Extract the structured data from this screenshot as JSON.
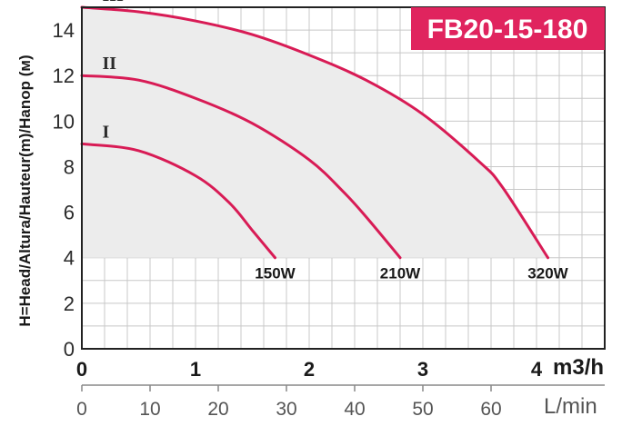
{
  "chart_data": {
    "type": "line",
    "title": "FB20-15-180",
    "ylabel": "H=Head/Altura/Hauteur(m)/Hanop (м)",
    "xlabel_top_unit": "m3/h",
    "xlabel_bottom_unit": "L/min",
    "ylim": [
      0,
      15
    ],
    "xlim": [
      0,
      4.6
    ],
    "y_ticks": [
      "0",
      "2",
      "4",
      "6",
      "8",
      "10",
      "12",
      "14"
    ],
    "x_ticks_top": [
      "0",
      "1",
      "2",
      "3",
      "4"
    ],
    "x_ticks_bottom": [
      "0",
      "10",
      "20",
      "30",
      "40",
      "50",
      "60"
    ],
    "grid": true,
    "series": [
      {
        "name": "I",
        "power": "150W",
        "x": [
          0,
          0.5,
          1.0,
          1.3,
          1.5,
          1.7
        ],
        "y": [
          9.0,
          8.7,
          7.6,
          6.4,
          5.2,
          4.0
        ]
      },
      {
        "name": "II",
        "power": "210W",
        "x": [
          0,
          0.5,
          1.0,
          1.5,
          2.0,
          2.3,
          2.5,
          2.8
        ],
        "y": [
          12.0,
          11.8,
          11.0,
          9.9,
          8.3,
          6.9,
          5.8,
          4.0
        ]
      },
      {
        "name": "III",
        "power": "320W",
        "x": [
          0,
          0.5,
          1.0,
          1.5,
          2.0,
          2.5,
          3.0,
          3.5,
          3.7,
          4.1
        ],
        "y": [
          15.0,
          14.8,
          14.4,
          13.8,
          12.9,
          11.8,
          10.3,
          8.2,
          7.1,
          4.0
        ]
      }
    ],
    "colors": {
      "curve": "#d81b55",
      "fill": "#ececec",
      "title_bg": "#e0245e"
    }
  }
}
